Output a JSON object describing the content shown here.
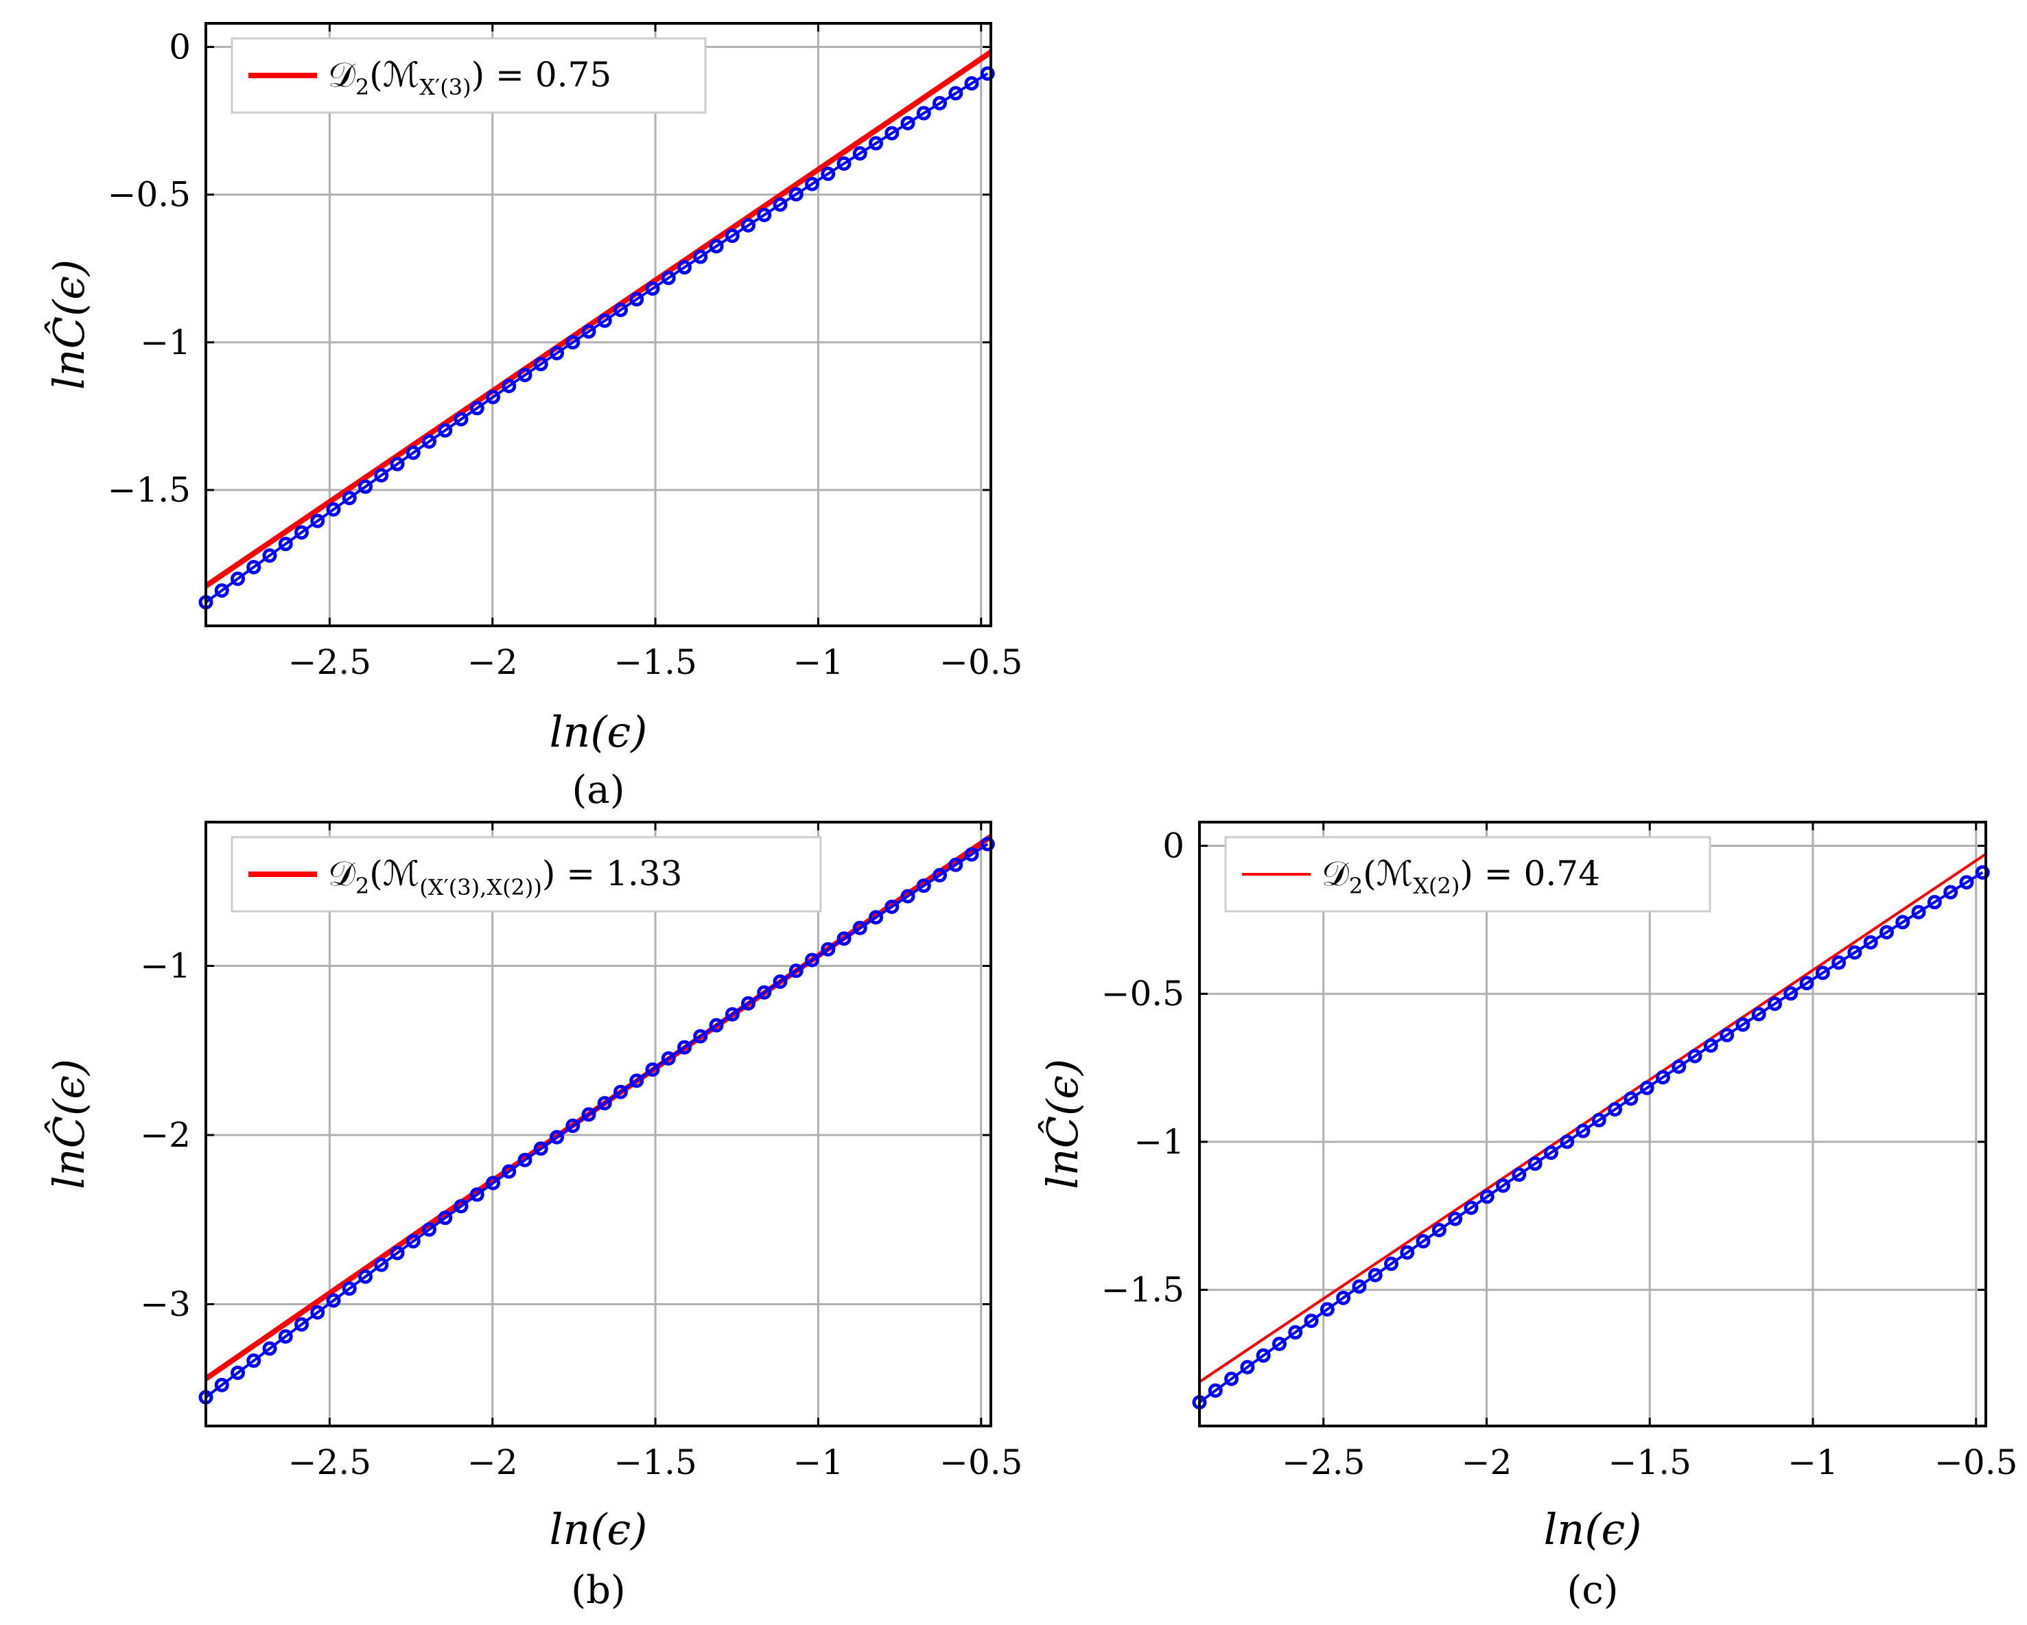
{
  "chart_data": [
    {
      "id": "a",
      "type": "scatter",
      "panel_label": "(a)",
      "xlabel": "ln(ϵ)",
      "ylabel": "lnĈ(ϵ)",
      "xlim": [
        -2.88,
        -0.47
      ],
      "ylim": [
        -1.96,
        0.08
      ],
      "xticks": [
        -2.5,
        -2,
        -1.5,
        -1,
        -0.5
      ],
      "xtick_labels": [
        "−2.5",
        "−2",
        "−1.5",
        "−1",
        "−0.5"
      ],
      "yticks": [
        0,
        -0.5,
        -1,
        -1.5
      ],
      "ytick_labels": [
        "0",
        "−0.5",
        "−1",
        "−1.5"
      ],
      "grid": true,
      "legend_position": "top-left",
      "legend": {
        "prefix": "𝒟",
        "sub1": "2",
        "mid": "(ℳ",
        "sub2": "X′(3)",
        "suffix": ") = 0.75"
      },
      "fit_line": {
        "slope": 0.75,
        "intercept": 0.335,
        "color": "#ff0000",
        "width": 8
      },
      "series": {
        "x_start": -2.88,
        "x_end": -0.48,
        "count": 50,
        "y_start": -1.88,
        "y_end": -0.09,
        "bend": 0.04,
        "color": "#0000ff"
      }
    },
    {
      "id": "b",
      "type": "scatter",
      "panel_label": "(b)",
      "xlabel": "ln(ϵ)",
      "ylabel": "lnĈ(ϵ)",
      "xlim": [
        -2.88,
        -0.47
      ],
      "ylim": [
        -3.72,
        -0.15
      ],
      "xticks": [
        -2.5,
        -2,
        -1.5,
        -1,
        -0.5
      ],
      "xtick_labels": [
        "−2.5",
        "−2",
        "−1.5",
        "−1",
        "−0.5"
      ],
      "yticks": [
        -1,
        -2,
        -3
      ],
      "ytick_labels": [
        "−1",
        "−2",
        "−3"
      ],
      "grid": true,
      "legend_position": "top-left",
      "legend": {
        "prefix": "𝒟",
        "sub1": "2",
        "mid": "(ℳ",
        "sub2": "(X′(3),X(2))",
        "suffix": ") = 1.33"
      },
      "fit_line": {
        "slope": 1.33,
        "intercept": 0.39,
        "color": "#ff0000",
        "width": 8
      },
      "series": {
        "x_start": -2.88,
        "x_end": -0.48,
        "count": 50,
        "y_start": -3.55,
        "y_end": -0.28,
        "bend": 0.07,
        "color": "#0000ff"
      }
    },
    {
      "id": "c",
      "type": "scatter",
      "panel_label": "(c)",
      "xlabel": "ln(ϵ)",
      "ylabel": "lnĈ(ϵ)",
      "xlim": [
        -2.88,
        -0.47
      ],
      "ylim": [
        -1.96,
        0.08
      ],
      "xticks": [
        -2.5,
        -2,
        -1.5,
        -1,
        -0.5
      ],
      "xtick_labels": [
        "−2.5",
        "−2",
        "−1.5",
        "−1",
        "−0.5"
      ],
      "yticks": [
        0,
        -0.5,
        -1,
        -1.5
      ],
      "ytick_labels": [
        "0",
        "−0.5",
        "−1",
        "−1.5"
      ],
      "grid": true,
      "legend_position": "top-left",
      "legend": {
        "prefix": "𝒟",
        "sub1": "2",
        "mid": "(ℳ",
        "sub2": "X(2)",
        "suffix": ") = 0.74"
      },
      "fit_line": {
        "slope": 0.74,
        "intercept": 0.32,
        "color": "#ff0000",
        "width": 4
      },
      "series": {
        "x_start": -2.88,
        "x_end": -0.48,
        "count": 50,
        "y_start": -1.88,
        "y_end": -0.09,
        "bend": 0.04,
        "color": "#0000ff"
      }
    }
  ]
}
